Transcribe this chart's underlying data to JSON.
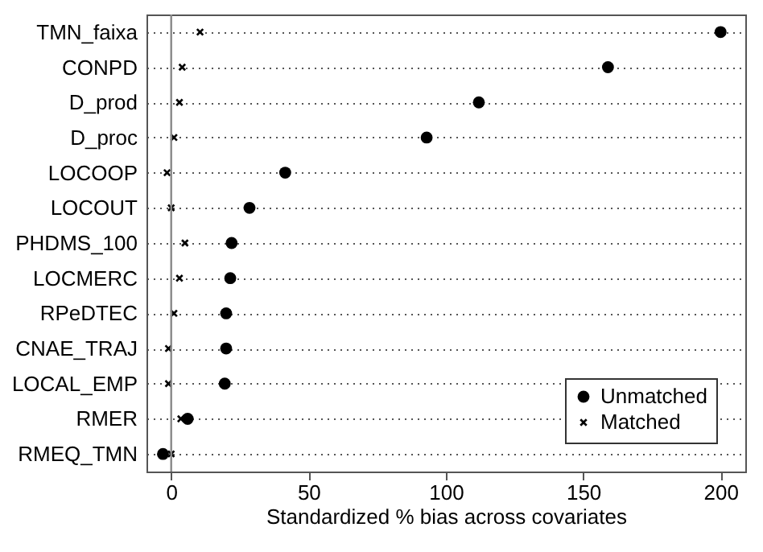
{
  "chart_data": {
    "type": "scatter",
    "xlabel": "Standardized % bias across covariates",
    "categories": [
      "TMN_faixa",
      "CONPD",
      "D_prod",
      "D_proc",
      "LOCOOP",
      "LOCOUT",
      "PHDMS_100",
      "LOCMERC",
      "RPeDTEC",
      "CNAE_TRAJ",
      "LOCAL_EMP",
      "RMER",
      "RMEQ_TMN"
    ],
    "series": [
      {
        "name": "Unmatched",
        "color": "#000000",
        "marker": "circle",
        "values": [
          200,
          159,
          112,
          93,
          41.5,
          28.5,
          22,
          21.5,
          20,
          20,
          19.5,
          6,
          -3
        ]
      },
      {
        "name": "Matched",
        "color": "#000000",
        "marker": "cross",
        "values": [
          10.5,
          4,
          3,
          1,
          -1.5,
          0,
          5,
          3,
          1,
          -1,
          -1,
          3.5,
          0
        ]
      }
    ],
    "orientation": "horizontal",
    "xlim": [
      -9,
      209
    ],
    "xticks": [
      0,
      50,
      100,
      150,
      200
    ],
    "ref_lines": [
      {
        "axis": "x",
        "value": 0,
        "color": "#888888"
      }
    ],
    "grid": "y",
    "legend": "bottom right"
  }
}
